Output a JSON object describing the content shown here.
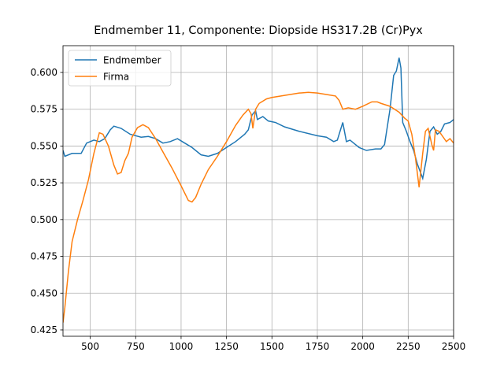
{
  "chart_data": {
    "type": "line",
    "title": "Endmember 11, Componente: Diopside HS317.2B (Cr)Pyx",
    "xlim": [
      350,
      2500
    ],
    "ylim": [
      0.4207,
      0.6182
    ],
    "xticks": [
      500,
      750,
      1000,
      1250,
      1500,
      1750,
      2000,
      2250,
      2500
    ],
    "yticks": [
      0.425,
      {
        "value": 0.45,
        "label": "0.450"
      },
      0.475,
      {
        "value": 0.5,
        "label": "0.500"
      },
      0.525,
      {
        "value": 0.55,
        "label": "0.550"
      },
      0.575,
      {
        "value": 0.6,
        "label": "0.600"
      }
    ],
    "grid": true,
    "legend": "upper left",
    "series": [
      {
        "name": "Endmember",
        "color": "#1f77b4",
        "x": [
          350,
          360,
          400,
          450,
          480,
          520,
          550,
          580,
          610,
          630,
          670,
          720,
          780,
          820,
          860,
          900,
          940,
          980,
          1020,
          1060,
          1110,
          1150,
          1200,
          1250,
          1300,
          1350,
          1370,
          1390,
          1410,
          1420,
          1450,
          1480,
          1520,
          1570,
          1650,
          1750,
          1800,
          1840,
          1860,
          1890,
          1910,
          1930,
          1980,
          2020,
          2070,
          2100,
          2120,
          2150,
          2170,
          2185,
          2200,
          2210,
          2220,
          2240,
          2260,
          2280,
          2300,
          2330,
          2350,
          2370,
          2390,
          2410,
          2430,
          2450,
          2480,
          2500
        ],
        "values": [
          0.547,
          0.543,
          0.545,
          0.545,
          0.552,
          0.554,
          0.553,
          0.555,
          0.561,
          0.5635,
          0.562,
          0.558,
          0.556,
          0.5565,
          0.555,
          0.552,
          0.553,
          0.555,
          0.552,
          0.549,
          0.544,
          0.543,
          0.545,
          0.549,
          0.553,
          0.558,
          0.561,
          0.571,
          0.574,
          0.568,
          0.57,
          0.567,
          0.566,
          0.563,
          0.56,
          0.557,
          0.556,
          0.553,
          0.554,
          0.566,
          0.553,
          0.554,
          0.549,
          0.547,
          0.548,
          0.548,
          0.551,
          0.575,
          0.598,
          0.601,
          0.61,
          0.603,
          0.566,
          0.56,
          0.553,
          0.547,
          0.538,
          0.528,
          0.541,
          0.56,
          0.563,
          0.558,
          0.56,
          0.565,
          0.566,
          0.568
        ]
      },
      {
        "name": "Firma",
        "color": "#ff7f0e",
        "x": [
          350,
          360,
          380,
          400,
          430,
          460,
          490,
          520,
          550,
          570,
          600,
          630,
          650,
          670,
          690,
          710,
          730,
          760,
          790,
          820,
          860,
          900,
          950,
          1000,
          1040,
          1060,
          1080,
          1110,
          1150,
          1200,
          1250,
          1300,
          1340,
          1370,
          1385,
          1395,
          1410,
          1430,
          1470,
          1500,
          1550,
          1600,
          1650,
          1700,
          1750,
          1800,
          1850,
          1870,
          1890,
          1920,
          1960,
          2000,
          2050,
          2080,
          2100,
          2150,
          2200,
          2230,
          2250,
          2270,
          2290,
          2310,
          2330,
          2345,
          2360,
          2380,
          2390,
          2400,
          2420,
          2460,
          2480,
          2500
        ],
        "values": [
          0.43,
          0.44,
          0.465,
          0.485,
          0.5,
          0.513,
          0.527,
          0.545,
          0.559,
          0.558,
          0.55,
          0.537,
          0.531,
          0.532,
          0.54,
          0.545,
          0.556,
          0.5625,
          0.5645,
          0.5625,
          0.555,
          0.546,
          0.535,
          0.523,
          0.513,
          0.512,
          0.515,
          0.524,
          0.534,
          0.543,
          0.553,
          0.564,
          0.571,
          0.575,
          0.572,
          0.562,
          0.575,
          0.579,
          0.582,
          0.583,
          0.584,
          0.585,
          0.586,
          0.5865,
          0.586,
          0.585,
          0.584,
          0.581,
          0.575,
          0.576,
          0.575,
          0.577,
          0.58,
          0.58,
          0.579,
          0.577,
          0.573,
          0.569,
          0.567,
          0.558,
          0.542,
          0.522,
          0.545,
          0.56,
          0.562,
          0.551,
          0.547,
          0.561,
          0.56,
          0.553,
          0.555,
          0.552
        ]
      }
    ]
  }
}
